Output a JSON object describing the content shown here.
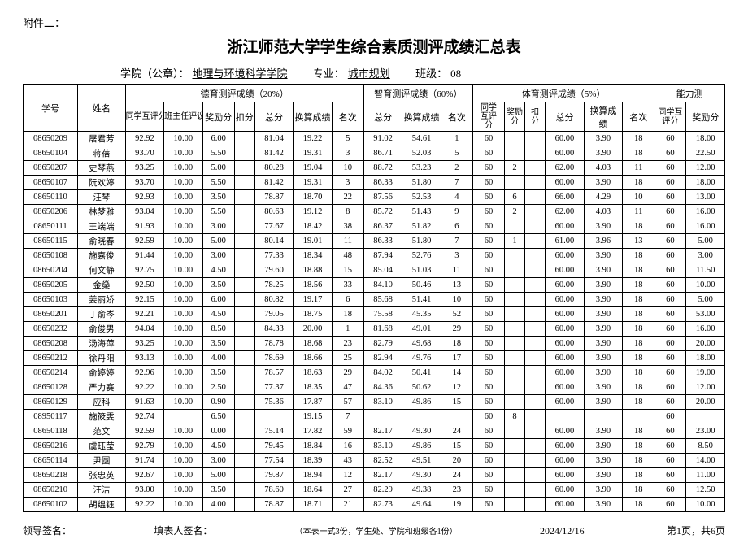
{
  "appendix": "附件二：",
  "title": "浙江师范大学学生综合素质测评成绩汇总表",
  "meta": {
    "college_label": "学院（公章）：",
    "college_value": "地理与环境科学学院",
    "major_label": "专业：",
    "major_value": "城市规划",
    "class_label": "班级：",
    "class_value": "08"
  },
  "headers": {
    "student_id": "学号",
    "name": "姓名",
    "group_moral": "德育测评成绩（20%）",
    "group_intel": "智育测评成绩（60%）",
    "group_pe": "体育测评成绩（5%）",
    "group_ability": "能力测",
    "peer_eval": "同学互评分",
    "teacher_eval": "班主任评议分",
    "bonus": "奖励分",
    "deduct": "扣分",
    "total": "总分",
    "converted": "换算成绩",
    "rank": "名次"
  },
  "rows": [
    {
      "id": "08650209",
      "name": "屠君芳",
      "m_peer": "92.92",
      "m_teacher": "10.00",
      "m_bonus": "6.00",
      "m_deduct": "",
      "m_total": "81.04",
      "m_conv": "19.22",
      "m_rank": "5",
      "i_total": "91.02",
      "i_conv": "54.61",
      "i_rank": "1",
      "p_peer": "60",
      "p_bonus": "",
      "p_deduct": "",
      "p_total": "60.00",
      "p_conv": "3.90",
      "p_rank": "18",
      "a_peer": "60",
      "a_bonus": "18.00"
    },
    {
      "id": "08650104",
      "name": "蒋蓓",
      "m_peer": "93.70",
      "m_teacher": "10.00",
      "m_bonus": "5.50",
      "m_deduct": "",
      "m_total": "81.42",
      "m_conv": "19.31",
      "m_rank": "3",
      "i_total": "86.71",
      "i_conv": "52.03",
      "i_rank": "5",
      "p_peer": "60",
      "p_bonus": "",
      "p_deduct": "",
      "p_total": "60.00",
      "p_conv": "3.90",
      "p_rank": "18",
      "a_peer": "60",
      "a_bonus": "22.50"
    },
    {
      "id": "08650207",
      "name": "史琴燕",
      "m_peer": "93.25",
      "m_teacher": "10.00",
      "m_bonus": "5.00",
      "m_deduct": "",
      "m_total": "80.28",
      "m_conv": "19.04",
      "m_rank": "10",
      "i_total": "88.72",
      "i_conv": "53.23",
      "i_rank": "2",
      "p_peer": "60",
      "p_bonus": "2",
      "p_deduct": "",
      "p_total": "62.00",
      "p_conv": "4.03",
      "p_rank": "11",
      "a_peer": "60",
      "a_bonus": "12.00"
    },
    {
      "id": "08650107",
      "name": "阮欢婷",
      "m_peer": "93.70",
      "m_teacher": "10.00",
      "m_bonus": "5.50",
      "m_deduct": "",
      "m_total": "81.42",
      "m_conv": "19.31",
      "m_rank": "3",
      "i_total": "86.33",
      "i_conv": "51.80",
      "i_rank": "7",
      "p_peer": "60",
      "p_bonus": "",
      "p_deduct": "",
      "p_total": "60.00",
      "p_conv": "3.90",
      "p_rank": "18",
      "a_peer": "60",
      "a_bonus": "18.00"
    },
    {
      "id": "08650110",
      "name": "汪琴",
      "m_peer": "92.93",
      "m_teacher": "10.00",
      "m_bonus": "3.50",
      "m_deduct": "",
      "m_total": "78.87",
      "m_conv": "18.70",
      "m_rank": "22",
      "i_total": "87.56",
      "i_conv": "52.53",
      "i_rank": "4",
      "p_peer": "60",
      "p_bonus": "6",
      "p_deduct": "",
      "p_total": "66.00",
      "p_conv": "4.29",
      "p_rank": "10",
      "a_peer": "60",
      "a_bonus": "13.00"
    },
    {
      "id": "08650206",
      "name": "林梦雅",
      "m_peer": "93.04",
      "m_teacher": "10.00",
      "m_bonus": "5.50",
      "m_deduct": "",
      "m_total": "80.63",
      "m_conv": "19.12",
      "m_rank": "8",
      "i_total": "85.72",
      "i_conv": "51.43",
      "i_rank": "9",
      "p_peer": "60",
      "p_bonus": "2",
      "p_deduct": "",
      "p_total": "62.00",
      "p_conv": "4.03",
      "p_rank": "11",
      "a_peer": "60",
      "a_bonus": "16.00"
    },
    {
      "id": "08650111",
      "name": "王端端",
      "m_peer": "91.93",
      "m_teacher": "10.00",
      "m_bonus": "3.00",
      "m_deduct": "",
      "m_total": "77.67",
      "m_conv": "18.42",
      "m_rank": "38",
      "i_total": "86.37",
      "i_conv": "51.82",
      "i_rank": "6",
      "p_peer": "60",
      "p_bonus": "",
      "p_deduct": "",
      "p_total": "60.00",
      "p_conv": "3.90",
      "p_rank": "18",
      "a_peer": "60",
      "a_bonus": "16.00"
    },
    {
      "id": "08650115",
      "name": "俞晓春",
      "m_peer": "92.59",
      "m_teacher": "10.00",
      "m_bonus": "5.00",
      "m_deduct": "",
      "m_total": "80.14",
      "m_conv": "19.01",
      "m_rank": "11",
      "i_total": "86.33",
      "i_conv": "51.80",
      "i_rank": "7",
      "p_peer": "60",
      "p_bonus": "1",
      "p_deduct": "",
      "p_total": "61.00",
      "p_conv": "3.96",
      "p_rank": "13",
      "a_peer": "60",
      "a_bonus": "5.00"
    },
    {
      "id": "08650108",
      "name": "施嘉俊",
      "m_peer": "91.44",
      "m_teacher": "10.00",
      "m_bonus": "3.00",
      "m_deduct": "",
      "m_total": "77.33",
      "m_conv": "18.34",
      "m_rank": "48",
      "i_total": "87.94",
      "i_conv": "52.76",
      "i_rank": "3",
      "p_peer": "60",
      "p_bonus": "",
      "p_deduct": "",
      "p_total": "60.00",
      "p_conv": "3.90",
      "p_rank": "18",
      "a_peer": "60",
      "a_bonus": "3.00"
    },
    {
      "id": "08650204",
      "name": "何文静",
      "m_peer": "92.75",
      "m_teacher": "10.00",
      "m_bonus": "4.50",
      "m_deduct": "",
      "m_total": "79.60",
      "m_conv": "18.88",
      "m_rank": "15",
      "i_total": "85.04",
      "i_conv": "51.03",
      "i_rank": "11",
      "p_peer": "60",
      "p_bonus": "",
      "p_deduct": "",
      "p_total": "60.00",
      "p_conv": "3.90",
      "p_rank": "18",
      "a_peer": "60",
      "a_bonus": "11.50"
    },
    {
      "id": "08650205",
      "name": "金燊",
      "m_peer": "92.50",
      "m_teacher": "10.00",
      "m_bonus": "3.50",
      "m_deduct": "",
      "m_total": "78.25",
      "m_conv": "18.56",
      "m_rank": "33",
      "i_total": "84.10",
      "i_conv": "50.46",
      "i_rank": "13",
      "p_peer": "60",
      "p_bonus": "",
      "p_deduct": "",
      "p_total": "60.00",
      "p_conv": "3.90",
      "p_rank": "18",
      "a_peer": "60",
      "a_bonus": "10.00"
    },
    {
      "id": "08650103",
      "name": "姜丽娇",
      "m_peer": "92.15",
      "m_teacher": "10.00",
      "m_bonus": "6.00",
      "m_deduct": "",
      "m_total": "80.82",
      "m_conv": "19.17",
      "m_rank": "6",
      "i_total": "85.68",
      "i_conv": "51.41",
      "i_rank": "10",
      "p_peer": "60",
      "p_bonus": "",
      "p_deduct": "",
      "p_total": "60.00",
      "p_conv": "3.90",
      "p_rank": "18",
      "a_peer": "60",
      "a_bonus": "5.00"
    },
    {
      "id": "08650201",
      "name": "丁俞岑",
      "m_peer": "92.21",
      "m_teacher": "10.00",
      "m_bonus": "4.50",
      "m_deduct": "",
      "m_total": "79.05",
      "m_conv": "18.75",
      "m_rank": "18",
      "i_total": "75.58",
      "i_conv": "45.35",
      "i_rank": "52",
      "p_peer": "60",
      "p_bonus": "",
      "p_deduct": "",
      "p_total": "60.00",
      "p_conv": "3.90",
      "p_rank": "18",
      "a_peer": "60",
      "a_bonus": "53.00"
    },
    {
      "id": "08650232",
      "name": "俞俊男",
      "m_peer": "94.04",
      "m_teacher": "10.00",
      "m_bonus": "8.50",
      "m_deduct": "",
      "m_total": "84.33",
      "m_conv": "20.00",
      "m_rank": "1",
      "i_total": "81.68",
      "i_conv": "49.01",
      "i_rank": "29",
      "p_peer": "60",
      "p_bonus": "",
      "p_deduct": "",
      "p_total": "60.00",
      "p_conv": "3.90",
      "p_rank": "18",
      "a_peer": "60",
      "a_bonus": "16.00"
    },
    {
      "id": "08650208",
      "name": "汤海萍",
      "m_peer": "93.25",
      "m_teacher": "10.00",
      "m_bonus": "3.50",
      "m_deduct": "",
      "m_total": "78.78",
      "m_conv": "18.68",
      "m_rank": "23",
      "i_total": "82.79",
      "i_conv": "49.68",
      "i_rank": "18",
      "p_peer": "60",
      "p_bonus": "",
      "p_deduct": "",
      "p_total": "60.00",
      "p_conv": "3.90",
      "p_rank": "18",
      "a_peer": "60",
      "a_bonus": "20.00"
    },
    {
      "id": "08650212",
      "name": "徐丹阳",
      "m_peer": "93.13",
      "m_teacher": "10.00",
      "m_bonus": "4.00",
      "m_deduct": "",
      "m_total": "78.69",
      "m_conv": "18.66",
      "m_rank": "25",
      "i_total": "82.94",
      "i_conv": "49.76",
      "i_rank": "17",
      "p_peer": "60",
      "p_bonus": "",
      "p_deduct": "",
      "p_total": "60.00",
      "p_conv": "3.90",
      "p_rank": "18",
      "a_peer": "60",
      "a_bonus": "18.00"
    },
    {
      "id": "08650214",
      "name": "俞婷婷",
      "m_peer": "92.96",
      "m_teacher": "10.00",
      "m_bonus": "3.50",
      "m_deduct": "",
      "m_total": "78.57",
      "m_conv": "18.63",
      "m_rank": "29",
      "i_total": "84.02",
      "i_conv": "50.41",
      "i_rank": "14",
      "p_peer": "60",
      "p_bonus": "",
      "p_deduct": "",
      "p_total": "60.00",
      "p_conv": "3.90",
      "p_rank": "18",
      "a_peer": "60",
      "a_bonus": "19.00"
    },
    {
      "id": "08650128",
      "name": "严力赛",
      "m_peer": "92.22",
      "m_teacher": "10.00",
      "m_bonus": "2.50",
      "m_deduct": "",
      "m_total": "77.37",
      "m_conv": "18.35",
      "m_rank": "47",
      "i_total": "84.36",
      "i_conv": "50.62",
      "i_rank": "12",
      "p_peer": "60",
      "p_bonus": "",
      "p_deduct": "",
      "p_total": "60.00",
      "p_conv": "3.90",
      "p_rank": "18",
      "a_peer": "60",
      "a_bonus": "12.00"
    },
    {
      "id": "08650129",
      "name": "应科",
      "m_peer": "91.63",
      "m_teacher": "10.00",
      "m_bonus": "0.90",
      "m_deduct": "",
      "m_total": "75.36",
      "m_conv": "17.87",
      "m_rank": "57",
      "i_total": "83.10",
      "i_conv": "49.86",
      "i_rank": "15",
      "p_peer": "60",
      "p_bonus": "",
      "p_deduct": "",
      "p_total": "60.00",
      "p_conv": "3.90",
      "p_rank": "18",
      "a_peer": "60",
      "a_bonus": "20.00"
    },
    {
      "id": "08950117",
      "name": "施筱雯",
      "m_peer": "92.74",
      "m_teacher": "",
      "m_bonus": "6.50",
      "m_deduct": "",
      "m_total": "",
      "m_conv": "19.15",
      "m_rank": "7",
      "i_total": "",
      "i_conv": "",
      "i_rank": "",
      "p_peer": "60",
      "p_bonus": "8",
      "p_deduct": "",
      "p_total": "",
      "p_conv": "",
      "p_rank": "",
      "a_peer": "60",
      "a_bonus": ""
    },
    {
      "id": "08650118",
      "name": "范文",
      "m_peer": "92.59",
      "m_teacher": "10.00",
      "m_bonus": "0.00",
      "m_deduct": "",
      "m_total": "75.14",
      "m_conv": "17.82",
      "m_rank": "59",
      "i_total": "82.17",
      "i_conv": "49.30",
      "i_rank": "24",
      "p_peer": "60",
      "p_bonus": "",
      "p_deduct": "",
      "p_total": "60.00",
      "p_conv": "3.90",
      "p_rank": "18",
      "a_peer": "60",
      "a_bonus": "23.00"
    },
    {
      "id": "08650216",
      "name": "虞珏莹",
      "m_peer": "92.79",
      "m_teacher": "10.00",
      "m_bonus": "4.50",
      "m_deduct": "",
      "m_total": "79.45",
      "m_conv": "18.84",
      "m_rank": "16",
      "i_total": "83.10",
      "i_conv": "49.86",
      "i_rank": "15",
      "p_peer": "60",
      "p_bonus": "",
      "p_deduct": "",
      "p_total": "60.00",
      "p_conv": "3.90",
      "p_rank": "18",
      "a_peer": "60",
      "a_bonus": "8.50"
    },
    {
      "id": "08650114",
      "name": "尹圆",
      "m_peer": "91.74",
      "m_teacher": "10.00",
      "m_bonus": "3.00",
      "m_deduct": "",
      "m_total": "77.54",
      "m_conv": "18.39",
      "m_rank": "43",
      "i_total": "82.52",
      "i_conv": "49.51",
      "i_rank": "20",
      "p_peer": "60",
      "p_bonus": "",
      "p_deduct": "",
      "p_total": "60.00",
      "p_conv": "3.90",
      "p_rank": "18",
      "a_peer": "60",
      "a_bonus": "14.00"
    },
    {
      "id": "08650218",
      "name": "张忠英",
      "m_peer": "92.67",
      "m_teacher": "10.00",
      "m_bonus": "5.00",
      "m_deduct": "",
      "m_total": "79.87",
      "m_conv": "18.94",
      "m_rank": "12",
      "i_total": "82.17",
      "i_conv": "49.30",
      "i_rank": "24",
      "p_peer": "60",
      "p_bonus": "",
      "p_deduct": "",
      "p_total": "60.00",
      "p_conv": "3.90",
      "p_rank": "18",
      "a_peer": "60",
      "a_bonus": "11.00"
    },
    {
      "id": "08650210",
      "name": "汪洁",
      "m_peer": "93.00",
      "m_teacher": "10.00",
      "m_bonus": "3.50",
      "m_deduct": "",
      "m_total": "78.60",
      "m_conv": "18.64",
      "m_rank": "27",
      "i_total": "82.29",
      "i_conv": "49.38",
      "i_rank": "23",
      "p_peer": "60",
      "p_bonus": "",
      "p_deduct": "",
      "p_total": "60.00",
      "p_conv": "3.90",
      "p_rank": "18",
      "a_peer": "60",
      "a_bonus": "12.50"
    },
    {
      "id": "08650102",
      "name": "胡缊钰",
      "m_peer": "92.22",
      "m_teacher": "10.00",
      "m_bonus": "4.00",
      "m_deduct": "",
      "m_total": "78.87",
      "m_conv": "18.71",
      "m_rank": "21",
      "i_total": "82.73",
      "i_conv": "49.64",
      "i_rank": "19",
      "p_peer": "60",
      "p_bonus": "",
      "p_deduct": "",
      "p_total": "60.00",
      "p_conv": "3.90",
      "p_rank": "18",
      "a_peer": "60",
      "a_bonus": "10.00"
    }
  ],
  "footer": {
    "leader_sign": "领导签名：",
    "writer_sign": "填表人签名：",
    "note": "（本表一式3份，学生处、学院和班级各1份）",
    "date": "2024/12/16",
    "page": "第1页，共6页"
  }
}
